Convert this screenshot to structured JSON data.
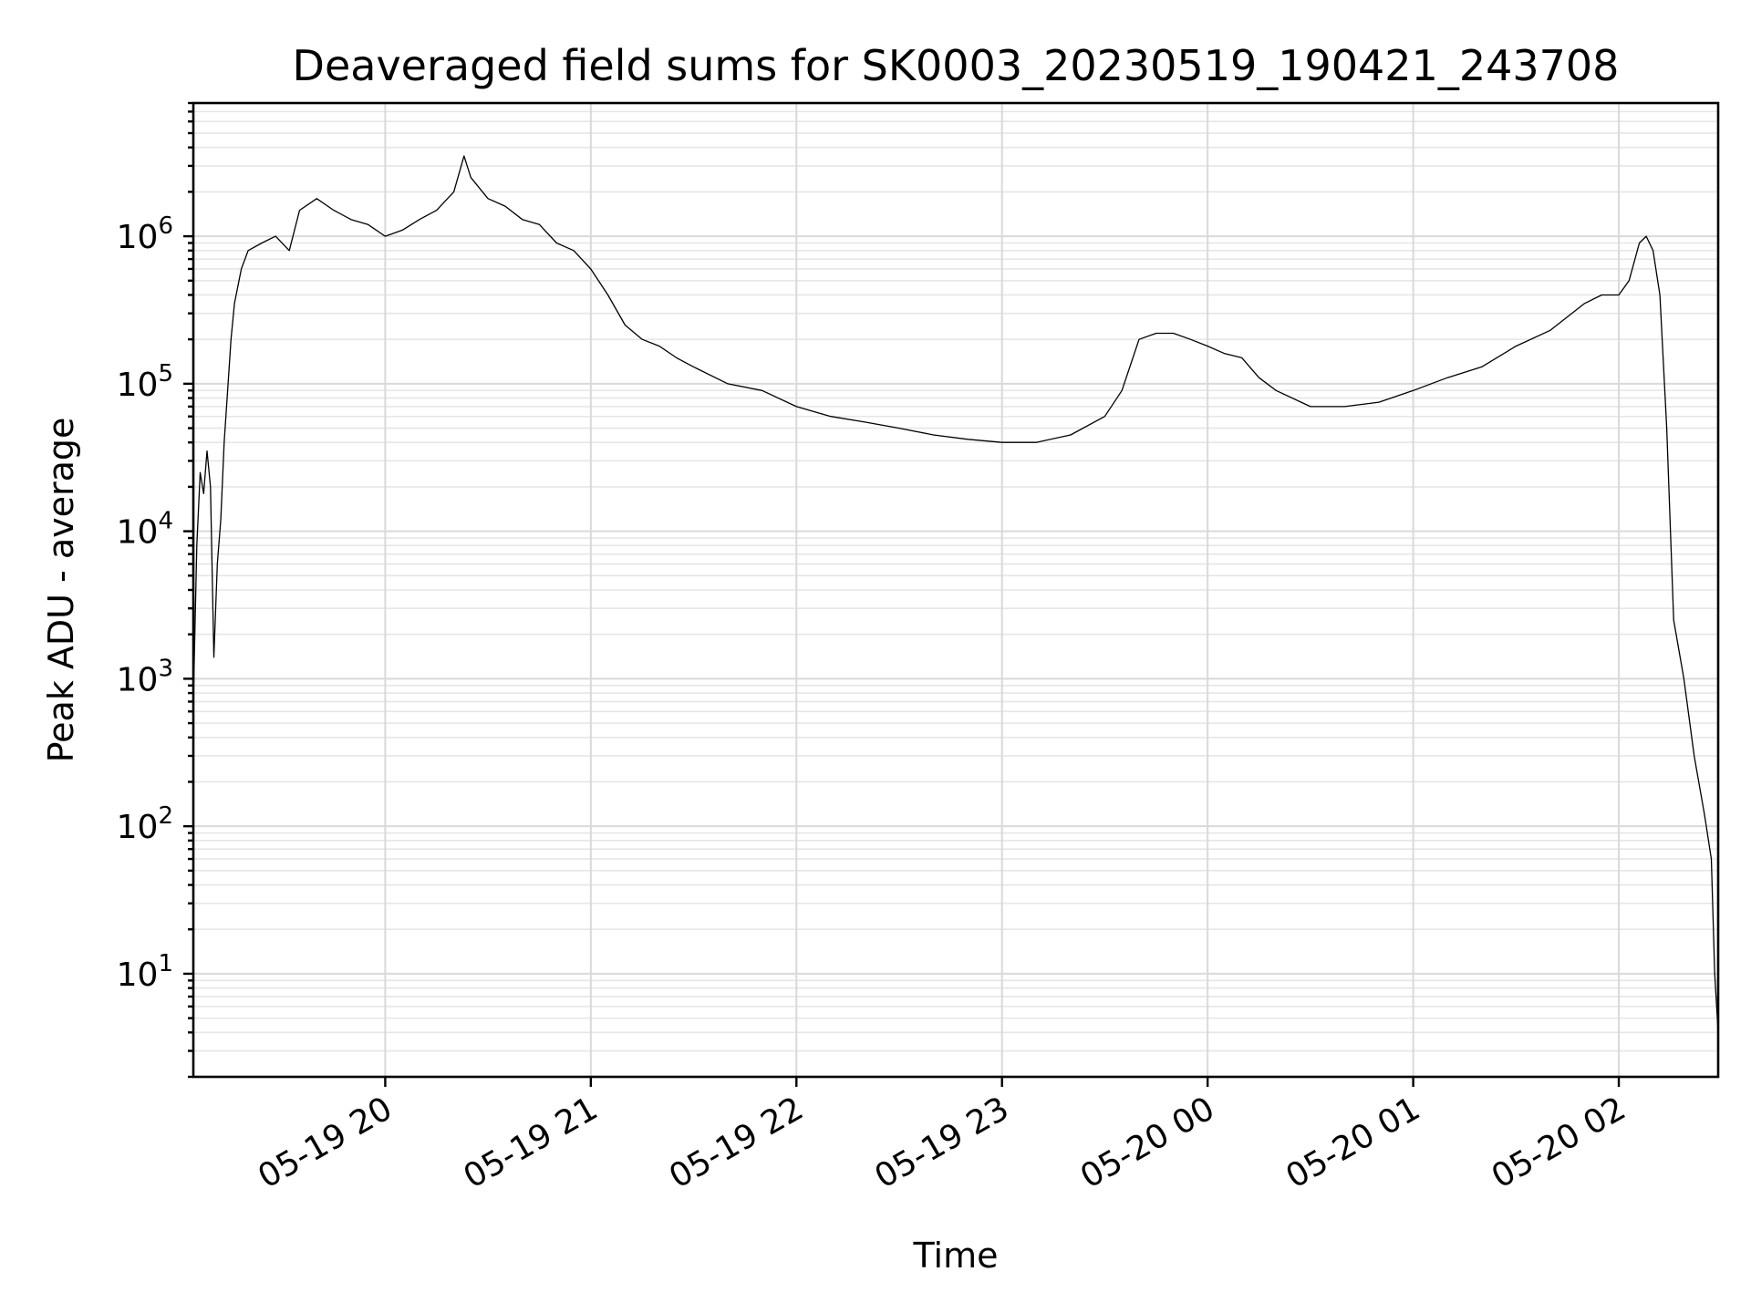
{
  "chart_data": {
    "type": "line",
    "title": "Deaveraged field sums for SK0003_20230519_190421_243708",
    "xlabel": "Time",
    "ylabel": "Peak ADU - average",
    "x_scale": "time",
    "y_scale": "log",
    "xlim": [
      "2023-05-19 19:04",
      "2023-05-20 02:29"
    ],
    "ylim": [
      2,
      8000000
    ],
    "grid": true,
    "x_ticks": [
      {
        "value": "2023-05-19 20:00",
        "label": "05-19 20"
      },
      {
        "value": "2023-05-19 21:00",
        "label": "05-19 21"
      },
      {
        "value": "2023-05-19 22:00",
        "label": "05-19 22"
      },
      {
        "value": "2023-05-19 23:00",
        "label": "05-19 23"
      },
      {
        "value": "2023-05-20 00:00",
        "label": "05-20 00"
      },
      {
        "value": "2023-05-20 01:00",
        "label": "05-20 01"
      },
      {
        "value": "2023-05-20 02:00",
        "label": "05-20 02"
      }
    ],
    "y_ticks": [
      {
        "value": 10,
        "base": "10",
        "exp": "1"
      },
      {
        "value": 100,
        "base": "10",
        "exp": "2"
      },
      {
        "value": 1000,
        "base": "10",
        "exp": "3"
      },
      {
        "value": 10000,
        "base": "10",
        "exp": "4"
      },
      {
        "value": 100000,
        "base": "10",
        "exp": "5"
      },
      {
        "value": 1000000,
        "base": "10",
        "exp": "6"
      }
    ],
    "series": [
      {
        "color": "#000000",
        "points": [
          [
            "2023-05-19 19:04",
            700
          ],
          [
            "2023-05-19 19:05",
            8000
          ],
          [
            "2023-05-19 19:06",
            25000
          ],
          [
            "2023-05-19 19:07",
            18000
          ],
          [
            "2023-05-19 19:08",
            35000
          ],
          [
            "2023-05-19 19:09",
            20000
          ],
          [
            "2023-05-19 19:10",
            1400
          ],
          [
            "2023-05-19 19:11",
            6000
          ],
          [
            "2023-05-19 19:12",
            12000
          ],
          [
            "2023-05-19 19:13",
            40000
          ],
          [
            "2023-05-19 19:14",
            90000
          ],
          [
            "2023-05-19 19:15",
            200000
          ],
          [
            "2023-05-19 19:16",
            350000
          ],
          [
            "2023-05-19 19:18",
            600000
          ],
          [
            "2023-05-19 19:20",
            800000
          ],
          [
            "2023-05-19 19:24",
            900000
          ],
          [
            "2023-05-19 19:28",
            1000000
          ],
          [
            "2023-05-19 19:32",
            800000
          ],
          [
            "2023-05-19 19:35",
            1500000
          ],
          [
            "2023-05-19 19:40",
            1800000
          ],
          [
            "2023-05-19 19:45",
            1500000
          ],
          [
            "2023-05-19 19:50",
            1300000
          ],
          [
            "2023-05-19 19:55",
            1200000
          ],
          [
            "2023-05-19 20:00",
            1000000
          ],
          [
            "2023-05-19 20:05",
            1100000
          ],
          [
            "2023-05-19 20:10",
            1300000
          ],
          [
            "2023-05-19 20:15",
            1500000
          ],
          [
            "2023-05-19 20:20",
            2000000
          ],
          [
            "2023-05-19 20:23",
            3500000
          ],
          [
            "2023-05-19 20:25",
            2500000
          ],
          [
            "2023-05-19 20:30",
            1800000
          ],
          [
            "2023-05-19 20:35",
            1600000
          ],
          [
            "2023-05-19 20:40",
            1300000
          ],
          [
            "2023-05-19 20:45",
            1200000
          ],
          [
            "2023-05-19 20:50",
            900000
          ],
          [
            "2023-05-19 20:55",
            800000
          ],
          [
            "2023-05-19 21:00",
            600000
          ],
          [
            "2023-05-19 21:05",
            400000
          ],
          [
            "2023-05-19 21:10",
            250000
          ],
          [
            "2023-05-19 21:15",
            200000
          ],
          [
            "2023-05-19 21:20",
            180000
          ],
          [
            "2023-05-19 21:25",
            150000
          ],
          [
            "2023-05-19 21:30",
            130000
          ],
          [
            "2023-05-19 21:40",
            100000
          ],
          [
            "2023-05-19 21:50",
            90000
          ],
          [
            "2023-05-19 22:00",
            70000
          ],
          [
            "2023-05-19 22:10",
            60000
          ],
          [
            "2023-05-19 22:20",
            55000
          ],
          [
            "2023-05-19 22:30",
            50000
          ],
          [
            "2023-05-19 22:40",
            45000
          ],
          [
            "2023-05-19 22:50",
            42000
          ],
          [
            "2023-05-19 23:00",
            40000
          ],
          [
            "2023-05-19 23:10",
            40000
          ],
          [
            "2023-05-19 23:20",
            45000
          ],
          [
            "2023-05-19 23:30",
            60000
          ],
          [
            "2023-05-19 23:35",
            90000
          ],
          [
            "2023-05-19 23:40",
            200000
          ],
          [
            "2023-05-19 23:45",
            220000
          ],
          [
            "2023-05-19 23:50",
            220000
          ],
          [
            "2023-05-19 23:55",
            200000
          ],
          [
            "2023-05-20 00:00",
            180000
          ],
          [
            "2023-05-20 00:05",
            160000
          ],
          [
            "2023-05-20 00:10",
            150000
          ],
          [
            "2023-05-20 00:15",
            110000
          ],
          [
            "2023-05-20 00:20",
            90000
          ],
          [
            "2023-05-20 00:30",
            70000
          ],
          [
            "2023-05-20 00:40",
            70000
          ],
          [
            "2023-05-20 00:50",
            75000
          ],
          [
            "2023-05-20 01:00",
            90000
          ],
          [
            "2023-05-20 01:10",
            110000
          ],
          [
            "2023-05-20 01:20",
            130000
          ],
          [
            "2023-05-20 01:30",
            180000
          ],
          [
            "2023-05-20 01:40",
            230000
          ],
          [
            "2023-05-20 01:50",
            350000
          ],
          [
            "2023-05-20 01:55",
            400000
          ],
          [
            "2023-05-20 02:00",
            400000
          ],
          [
            "2023-05-20 02:03",
            500000
          ],
          [
            "2023-05-20 02:06",
            900000
          ],
          [
            "2023-05-20 02:08",
            1000000
          ],
          [
            "2023-05-20 02:10",
            800000
          ],
          [
            "2023-05-20 02:12",
            400000
          ],
          [
            "2023-05-20 02:14",
            50000
          ],
          [
            "2023-05-20 02:16",
            2500
          ],
          [
            "2023-05-20 02:19",
            1000
          ],
          [
            "2023-05-20 02:22",
            300
          ],
          [
            "2023-05-20 02:25",
            120
          ],
          [
            "2023-05-20 02:27",
            60
          ],
          [
            "2023-05-20 02:28",
            10
          ],
          [
            "2023-05-20 02:29",
            4
          ]
        ]
      }
    ]
  }
}
